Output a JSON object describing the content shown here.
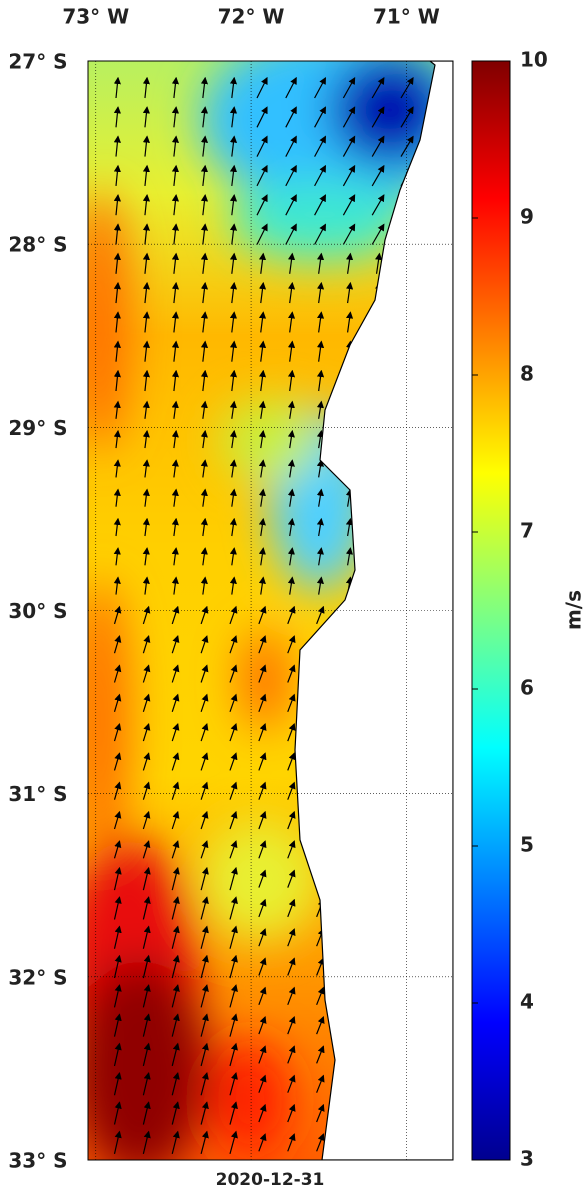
{
  "map": {
    "xlim": [
      -73.05,
      -70.7
    ],
    "ylim": [
      -33,
      -27
    ],
    "xticks": [
      {
        "value": -73,
        "label": "73° W"
      },
      {
        "value": -72,
        "label": "72° W"
      },
      {
        "value": -71,
        "label": "71° W"
      }
    ],
    "yticks": [
      {
        "value": -27,
        "label": "27° S"
      },
      {
        "value": -28,
        "label": "28° S"
      },
      {
        "value": -29,
        "label": "29° S"
      },
      {
        "value": -30,
        "label": "30° S"
      },
      {
        "value": -31,
        "label": "31° S"
      },
      {
        "value": -32,
        "label": "32° S"
      },
      {
        "value": -33,
        "label": "33° S"
      }
    ],
    "grid": true,
    "date": "2020-12-31"
  },
  "colorbar": {
    "lim": [
      3,
      10
    ],
    "ticks": [
      3,
      4,
      5,
      6,
      7,
      8,
      9,
      10
    ],
    "label": "m/s",
    "colormap": "jet"
  }
}
